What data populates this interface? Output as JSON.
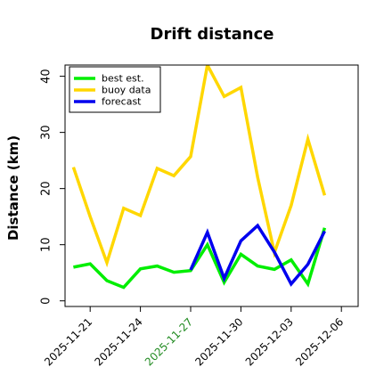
{
  "chart_data": {
    "type": "line",
    "title": "Drift distance",
    "xlabel": "",
    "ylabel": "Distance (km)",
    "ylim": [
      -1,
      42
    ],
    "yticks": [
      0,
      10,
      20,
      30,
      40
    ],
    "xlim": [
      "2025-11-19 12:00",
      "2025-12-07 00:00"
    ],
    "xticks": [
      {
        "label": "2025-11-21",
        "date": "2025-11-21",
        "color": "#000000"
      },
      {
        "label": "2025-11-24",
        "date": "2025-11-24",
        "color": "#000000"
      },
      {
        "label": "2025-11-27",
        "date": "2025-11-27",
        "color": "#228b22"
      },
      {
        "label": "2025-11-30",
        "date": "2025-11-30",
        "color": "#000000"
      },
      {
        "label": "2025-12-03",
        "date": "2025-12-03",
        "color": "#000000"
      },
      {
        "label": "2025-12-06",
        "date": "2025-12-06",
        "color": "#000000"
      }
    ],
    "legend": {
      "position": "top-left"
    },
    "series": [
      {
        "name": "best est.",
        "color": "#00ee00",
        "points": [
          [
            "2025-11-20",
            6.0
          ],
          [
            "2025-11-21",
            6.6
          ],
          [
            "2025-11-22",
            3.6
          ],
          [
            "2025-11-23",
            2.4
          ],
          [
            "2025-11-24",
            5.7
          ],
          [
            "2025-11-25",
            6.2
          ],
          [
            "2025-11-26",
            5.1
          ],
          [
            "2025-11-27",
            5.4
          ],
          [
            "2025-11-28",
            10.0
          ],
          [
            "2025-11-29",
            3.3
          ],
          [
            "2025-11-30",
            8.3
          ],
          [
            "2025-12-01",
            6.2
          ],
          [
            "2025-12-02",
            5.6
          ],
          [
            "2025-12-03",
            7.3
          ],
          [
            "2025-12-04",
            3.0
          ],
          [
            "2025-12-05",
            13.0
          ]
        ]
      },
      {
        "name": "buoy data",
        "color": "#ffd700",
        "points": [
          [
            "2025-11-20",
            23.8
          ],
          [
            "2025-11-21",
            15.0
          ],
          [
            "2025-11-22",
            6.8
          ],
          [
            "2025-11-23",
            16.5
          ],
          [
            "2025-11-24",
            15.2
          ],
          [
            "2025-11-25",
            23.6
          ],
          [
            "2025-11-26",
            22.3
          ],
          [
            "2025-11-27",
            25.7
          ],
          [
            "2025-11-28",
            42.0
          ],
          [
            "2025-11-29",
            36.4
          ],
          [
            "2025-11-30",
            38.0
          ],
          [
            "2025-12-01",
            22.0
          ],
          [
            "2025-12-02",
            8.6
          ],
          [
            "2025-12-03",
            17.0
          ],
          [
            "2025-12-04",
            28.8
          ],
          [
            "2025-12-05",
            18.8
          ]
        ]
      },
      {
        "name": "forecast",
        "color": "#0000ee",
        "points": [
          [
            "2025-11-27",
            5.5
          ],
          [
            "2025-11-28",
            12.2
          ],
          [
            "2025-11-29",
            4.0
          ],
          [
            "2025-11-30",
            10.7
          ],
          [
            "2025-12-01",
            13.4
          ],
          [
            "2025-12-02",
            8.7
          ],
          [
            "2025-12-03",
            3.0
          ],
          [
            "2025-12-04",
            6.5
          ],
          [
            "2025-12-05",
            12.4
          ]
        ]
      }
    ]
  }
}
